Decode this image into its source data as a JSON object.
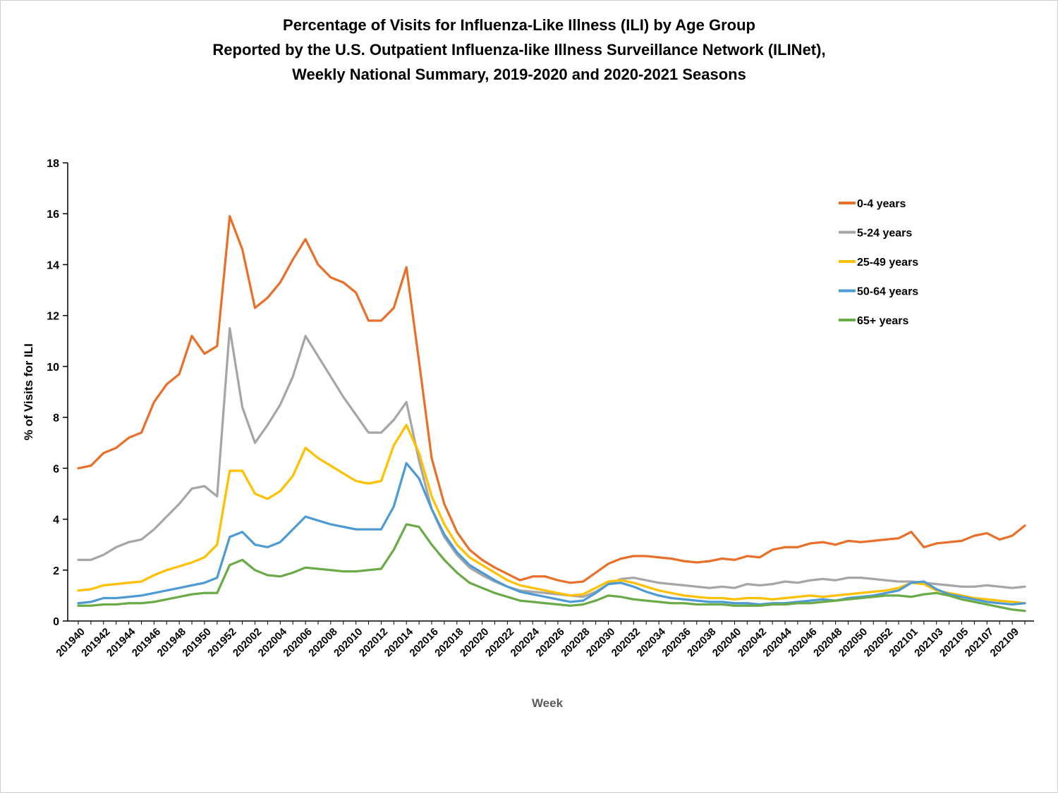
{
  "page": {
    "title_lines": [
      "Percentage of Visits for Influenza-Like Illness (ILI) by Age Group",
      "Reported by the U.S. Outpatient Influenza-like Illness Surveillance Network (ILINet),",
      "Weekly National Summary, 2019-2020 and 2020-2021 Seasons"
    ]
  },
  "chart_data": {
    "type": "line",
    "title": "Percentage of Visits for Influenza-Like Illness (ILI) by Age Group Reported by the U.S. Outpatient Influenza-like Illness Surveillance Network (ILINet), Weekly National Summary, 2019-2020 and 2020-2021 Seasons",
    "xlabel": "Week",
    "ylabel": "% of Visits for ILI",
    "ylim": [
      0,
      18
    ],
    "ytick_step": 2,
    "x_tick_label_every": 2,
    "grid": false,
    "legend_position": "right-inside",
    "x": [
      "201940",
      "201941",
      "201942",
      "201943",
      "201944",
      "201945",
      "201946",
      "201947",
      "201948",
      "201949",
      "201950",
      "201951",
      "201952",
      "202001",
      "202002",
      "202003",
      "202004",
      "202005",
      "202006",
      "202007",
      "202008",
      "202009",
      "202010",
      "202011",
      "202012",
      "202013",
      "202014",
      "202015",
      "202016",
      "202017",
      "202018",
      "202019",
      "202020",
      "202021",
      "202022",
      "202023",
      "202024",
      "202025",
      "202026",
      "202027",
      "202028",
      "202029",
      "202030",
      "202031",
      "202032",
      "202033",
      "202034",
      "202035",
      "202036",
      "202037",
      "202038",
      "202039",
      "202040",
      "202041",
      "202042",
      "202043",
      "202044",
      "202045",
      "202046",
      "202047",
      "202048",
      "202049",
      "202050",
      "202051",
      "202052",
      "202053",
      "202101",
      "202102",
      "202103",
      "202104",
      "202105",
      "202106",
      "202107",
      "202108",
      "202109",
      "202110"
    ],
    "series": [
      {
        "name": "0-4 years",
        "color": "#E8702A",
        "values": [
          6.0,
          6.1,
          6.6,
          6.8,
          7.2,
          7.4,
          8.6,
          9.3,
          9.7,
          11.2,
          10.5,
          10.8,
          15.9,
          14.6,
          12.3,
          12.7,
          13.3,
          14.2,
          15.0,
          14.0,
          13.5,
          13.3,
          12.9,
          11.8,
          11.8,
          12.3,
          13.9,
          10.2,
          6.4,
          4.6,
          3.5,
          2.8,
          2.4,
          2.1,
          1.85,
          1.6,
          1.75,
          1.75,
          1.6,
          1.5,
          1.55,
          1.9,
          2.25,
          2.45,
          2.55,
          2.55,
          2.5,
          2.45,
          2.35,
          2.3,
          2.35,
          2.45,
          2.4,
          2.55,
          2.5,
          2.8,
          2.9,
          2.9,
          3.05,
          3.1,
          3.0,
          3.15,
          3.1,
          3.15,
          3.2,
          3.25,
          3.5,
          2.9,
          3.05,
          3.1,
          3.15,
          3.35,
          3.45,
          3.2,
          3.35,
          3.75
        ]
      },
      {
        "name": "5-24 years",
        "color": "#A6A6A6",
        "values": [
          2.4,
          2.4,
          2.6,
          2.9,
          3.1,
          3.2,
          3.6,
          4.1,
          4.6,
          5.2,
          5.3,
          4.9,
          11.5,
          8.4,
          7.0,
          7.7,
          8.5,
          9.6,
          11.2,
          10.4,
          9.6,
          8.8,
          8.1,
          7.4,
          7.4,
          7.9,
          8.6,
          6.3,
          4.4,
          3.3,
          2.6,
          2.1,
          1.8,
          1.55,
          1.35,
          1.2,
          1.15,
          1.1,
          1.05,
          1.0,
          0.95,
          1.15,
          1.45,
          1.65,
          1.7,
          1.6,
          1.5,
          1.45,
          1.4,
          1.35,
          1.3,
          1.35,
          1.3,
          1.45,
          1.4,
          1.45,
          1.55,
          1.5,
          1.6,
          1.65,
          1.6,
          1.7,
          1.7,
          1.65,
          1.6,
          1.55,
          1.55,
          1.5,
          1.45,
          1.4,
          1.35,
          1.35,
          1.4,
          1.35,
          1.3,
          1.35
        ]
      },
      {
        "name": "25-49 years",
        "color": "#FFC000",
        "values": [
          1.2,
          1.25,
          1.4,
          1.45,
          1.5,
          1.55,
          1.8,
          2.0,
          2.15,
          2.3,
          2.5,
          3.0,
          5.9,
          5.9,
          5.0,
          4.8,
          5.1,
          5.7,
          6.8,
          6.4,
          6.1,
          5.8,
          5.5,
          5.4,
          5.5,
          6.9,
          7.7,
          6.6,
          4.9,
          3.8,
          3.0,
          2.5,
          2.2,
          1.9,
          1.6,
          1.4,
          1.3,
          1.2,
          1.1,
          1.0,
          1.05,
          1.3,
          1.55,
          1.6,
          1.5,
          1.35,
          1.2,
          1.1,
          1.0,
          0.95,
          0.9,
          0.9,
          0.85,
          0.9,
          0.9,
          0.85,
          0.9,
          0.95,
          1.0,
          0.95,
          1.0,
          1.05,
          1.1,
          1.15,
          1.2,
          1.3,
          1.5,
          1.45,
          1.2,
          1.1,
          1.0,
          0.9,
          0.85,
          0.8,
          0.75,
          0.7
        ]
      },
      {
        "name": "50-64 years",
        "color": "#4E9BD4",
        "values": [
          0.7,
          0.75,
          0.9,
          0.9,
          0.95,
          1.0,
          1.1,
          1.2,
          1.3,
          1.4,
          1.5,
          1.7,
          3.3,
          3.5,
          3.0,
          2.9,
          3.1,
          3.6,
          4.1,
          3.95,
          3.8,
          3.7,
          3.6,
          3.6,
          3.6,
          4.5,
          6.2,
          5.6,
          4.4,
          3.4,
          2.7,
          2.2,
          1.9,
          1.6,
          1.35,
          1.15,
          1.05,
          0.95,
          0.85,
          0.75,
          0.8,
          1.1,
          1.45,
          1.5,
          1.35,
          1.15,
          1.0,
          0.9,
          0.85,
          0.8,
          0.75,
          0.75,
          0.7,
          0.7,
          0.65,
          0.7,
          0.7,
          0.75,
          0.8,
          0.85,
          0.8,
          0.9,
          0.95,
          1.0,
          1.1,
          1.2,
          1.5,
          1.55,
          1.25,
          1.05,
          0.95,
          0.85,
          0.75,
          0.7,
          0.65,
          0.7
        ]
      },
      {
        "name": "65+ years",
        "color": "#6AAB47",
        "values": [
          0.6,
          0.6,
          0.65,
          0.65,
          0.7,
          0.7,
          0.75,
          0.85,
          0.95,
          1.05,
          1.1,
          1.1,
          2.2,
          2.4,
          2.0,
          1.8,
          1.75,
          1.9,
          2.1,
          2.05,
          2.0,
          1.95,
          1.95,
          2.0,
          2.05,
          2.8,
          3.8,
          3.7,
          3.0,
          2.4,
          1.9,
          1.5,
          1.3,
          1.1,
          0.95,
          0.8,
          0.75,
          0.7,
          0.65,
          0.6,
          0.65,
          0.8,
          1.0,
          0.95,
          0.85,
          0.8,
          0.75,
          0.7,
          0.7,
          0.65,
          0.65,
          0.65,
          0.6,
          0.6,
          0.6,
          0.65,
          0.65,
          0.7,
          0.7,
          0.75,
          0.8,
          0.85,
          0.9,
          0.95,
          1.0,
          1.0,
          0.95,
          1.05,
          1.1,
          1.0,
          0.85,
          0.75,
          0.65,
          0.55,
          0.45,
          0.4
        ]
      }
    ]
  }
}
